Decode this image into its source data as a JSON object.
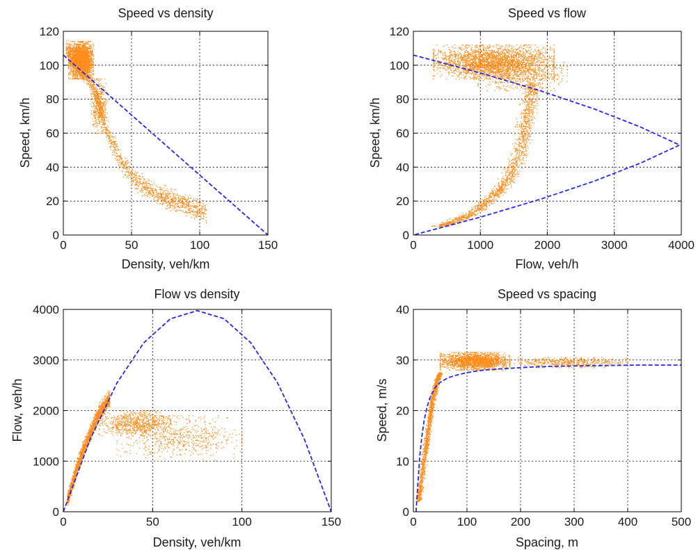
{
  "figure": {
    "marker_color": "#ff8c1a",
    "fit_color": "#2626e6"
  },
  "chart_data": [
    {
      "type": "scatter",
      "title": "Speed vs density",
      "xlabel": "Density, veh/km",
      "ylabel": "Speed, km/h",
      "xlim": [
        0,
        150
      ],
      "ylim": [
        0,
        120
      ],
      "xticks": [
        0,
        50,
        100,
        150
      ],
      "yticks": [
        0,
        20,
        40,
        60,
        80,
        100,
        120
      ],
      "grid": true,
      "clusters": [
        {
          "x": [
            4,
            22
          ],
          "y": [
            92,
            114
          ],
          "count": 2200
        },
        {
          "x": [
            20,
            32
          ],
          "y": [
            60,
            92
          ],
          "count": 400
        }
      ],
      "trend_curve": {
        "x": [
          2,
          8,
          15,
          22,
          28,
          35,
          45,
          55,
          65,
          75,
          85,
          95,
          105
        ],
        "y": [
          110,
          104,
          96,
          88,
          72,
          55,
          40,
          31,
          26,
          22,
          19,
          16,
          13
        ],
        "spread_y": 7,
        "count": 1600
      },
      "fit_line": {
        "x": [
          0,
          15,
          30,
          45,
          60,
          75,
          90,
          105,
          120,
          135,
          150
        ],
        "y": [
          106,
          95.4,
          84.8,
          74.2,
          63.6,
          53,
          42.4,
          31.8,
          21.2,
          10.6,
          0
        ]
      }
    },
    {
      "type": "scatter",
      "title": "Speed vs flow",
      "xlabel": "Flow, veh/h",
      "ylabel": "Speed, km/h",
      "xlim": [
        0,
        4000
      ],
      "ylim": [
        0,
        120
      ],
      "xticks": [
        0,
        1000,
        2000,
        3000,
        4000
      ],
      "yticks": [
        0,
        20,
        40,
        60,
        80,
        100,
        120
      ],
      "grid": true,
      "clusters": [
        {
          "x": [
            300,
            2100
          ],
          "y": [
            92,
            112
          ],
          "count": 2600
        },
        {
          "x": [
            900,
            2300
          ],
          "y": [
            85,
            102
          ],
          "count": 500
        }
      ],
      "trend_curve": {
        "x": [
          1800,
          1750,
          1700,
          1650,
          1600,
          1500,
          1400,
          1250,
          1050,
          850,
          600,
          400
        ],
        "y": [
          90,
          80,
          70,
          60,
          50,
          40,
          32,
          25,
          18,
          12,
          8,
          5
        ],
        "spread_x": 150,
        "count": 1500
      },
      "fit_line": {
        "x": [
          0,
          1007,
          1908,
          2703,
          3392,
          3975,
          3392,
          2703,
          1908,
          1007,
          0
        ],
        "y": [
          106,
          95.4,
          84.8,
          74.2,
          63.6,
          53,
          42.4,
          31.8,
          21.2,
          10.6,
          0
        ]
      }
    },
    {
      "type": "scatter",
      "title": "Flow vs density",
      "xlabel": "Density, veh/km",
      "ylabel": "Flow, veh/h",
      "xlim": [
        0,
        150
      ],
      "ylim": [
        0,
        4000
      ],
      "xticks": [
        0,
        50,
        100,
        150
      ],
      "yticks": [
        0,
        1000,
        2000,
        3000,
        4000
      ],
      "grid": true,
      "clusters": [
        {
          "x": [
            20,
            60
          ],
          "y": [
            1500,
            2000
          ],
          "count": 700
        },
        {
          "x": [
            30,
            100
          ],
          "y": [
            1000,
            1900
          ],
          "count": 600
        }
      ],
      "trend_curve": {
        "x": [
          2,
          5,
          8,
          11,
          14,
          17,
          20,
          23,
          26
        ],
        "y": [
          200,
          550,
          900,
          1200,
          1450,
          1700,
          1950,
          2100,
          2250
        ],
        "spread_y": 180,
        "count": 1800
      },
      "fit_line": {
        "x": [
          0,
          15,
          30,
          45,
          60,
          75,
          90,
          105,
          120,
          135,
          150
        ],
        "y": [
          0,
          1431,
          2544,
          3339,
          3816,
          3975,
          3816,
          3339,
          2544,
          1431,
          0
        ]
      }
    },
    {
      "type": "scatter",
      "title": "Speed vs spacing",
      "xlabel": "Spacing, m",
      "ylabel": "Speed, m/s",
      "xlim": [
        0,
        500
      ],
      "ylim": [
        0,
        40
      ],
      "xticks": [
        0,
        100,
        200,
        300,
        400,
        500
      ],
      "yticks": [
        0,
        10,
        20,
        30,
        40
      ],
      "grid": true,
      "clusters": [
        {
          "x": [
            50,
            180
          ],
          "y": [
            28,
            31.5
          ],
          "count": 1800
        },
        {
          "x": [
            180,
            400
          ],
          "y": [
            28.5,
            30.5
          ],
          "count": 500
        }
      ],
      "trend_curve": {
        "x": [
          10,
          15,
          20,
          25,
          30,
          35,
          40,
          45,
          50
        ],
        "y": [
          2,
          6,
          10,
          14,
          18,
          21,
          24,
          26,
          27.5
        ],
        "spread_x": 6,
        "count": 1400
      },
      "fit_line": {
        "x": [
          5,
          8,
          12,
          16,
          20,
          25,
          30,
          40,
          50,
          65,
          80,
          100,
          130,
          170,
          220,
          280,
          350,
          420,
          500
        ],
        "y": [
          0,
          5,
          11,
          15,
          18,
          20.5,
          22.3,
          24.5,
          25.6,
          26.5,
          27,
          27.5,
          28,
          28.3,
          28.6,
          28.8,
          28.9,
          29,
          29
        ]
      }
    }
  ]
}
